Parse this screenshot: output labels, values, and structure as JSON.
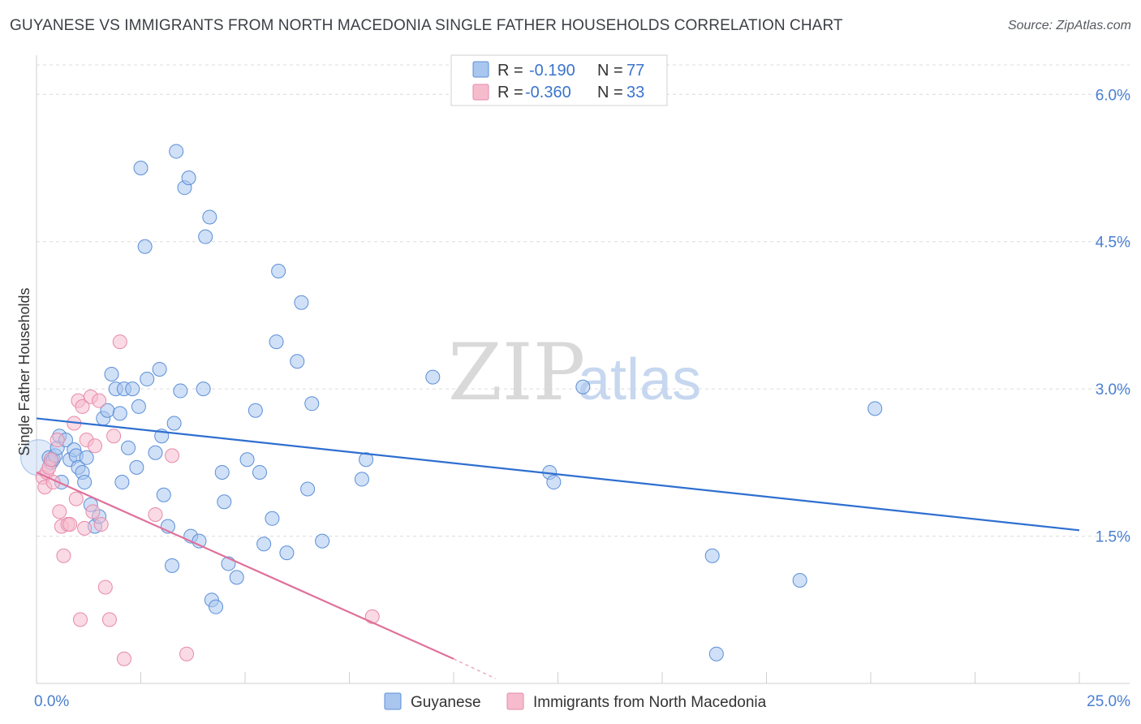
{
  "title": "GUYANESE VS IMMIGRANTS FROM NORTH MACEDONIA SINGLE FATHER HOUSEHOLDS CORRELATION CHART",
  "source": "Source: ZipAtlas.com",
  "watermark": {
    "part1": "ZIP",
    "part2": "atlas"
  },
  "legend": {
    "rows": [
      {
        "r_label": "R =",
        "r_value": "-0.190",
        "n_label": "N =",
        "n_value": "77"
      },
      {
        "r_label": "R =",
        "r_value": "-0.360",
        "n_label": "N =",
        "n_value": "33"
      }
    ]
  },
  "colors": {
    "guyanese_fill": "#a9c6ef",
    "guyanese_stroke": "#5b8fd8",
    "guyanese_line": "#2f6fd0",
    "macedonia_fill": "#f6bccd",
    "macedonia_stroke": "#e68aa9",
    "macedonia_line": "#e0709a",
    "tick_color": "#4a7fd0",
    "grid": "#dcdcdc"
  },
  "chart_data": {
    "type": "scatter",
    "title": "GUYANESE VS IMMIGRANTS FROM NORTH MACEDONIA SINGLE FATHER HOUSEHOLDS CORRELATION CHART",
    "xlabel": "",
    "ylabel": "Single Father Households",
    "xlim": [
      0,
      25
    ],
    "ylim": [
      0,
      6.3
    ],
    "x_tick_labels": [
      "0.0%",
      "25.0%"
    ],
    "y_ticks": [
      1.5,
      3.0,
      4.5,
      6.0
    ],
    "y_tick_labels": [
      "1.5%",
      "3.0%",
      "4.5%",
      "6.0%"
    ],
    "grid": "horizontal dashed",
    "legend_position": "top-center",
    "series": [
      {
        "name": "Guyanese",
        "r": -0.19,
        "n": 77,
        "trend": {
          "x": [
            0,
            25
          ],
          "y": [
            2.7,
            1.56
          ]
        },
        "points": [
          [
            0.3,
            2.3
          ],
          [
            0.35,
            2.25
          ],
          [
            0.4,
            2.28
          ],
          [
            0.45,
            2.32
          ],
          [
            0.5,
            2.4
          ],
          [
            0.55,
            2.52
          ],
          [
            0.6,
            2.05
          ],
          [
            0.7,
            2.48
          ],
          [
            0.8,
            2.28
          ],
          [
            0.9,
            2.38
          ],
          [
            0.95,
            2.32
          ],
          [
            1.0,
            2.2
          ],
          [
            1.1,
            2.15
          ],
          [
            1.15,
            2.05
          ],
          [
            1.2,
            2.3
          ],
          [
            1.3,
            1.82
          ],
          [
            1.4,
            1.6
          ],
          [
            1.5,
            1.7
          ],
          [
            1.6,
            2.7
          ],
          [
            1.7,
            2.78
          ],
          [
            1.8,
            3.15
          ],
          [
            1.9,
            3.0
          ],
          [
            2.0,
            2.75
          ],
          [
            2.05,
            2.05
          ],
          [
            2.1,
            3.0
          ],
          [
            2.2,
            2.4
          ],
          [
            2.3,
            3.0
          ],
          [
            2.4,
            2.2
          ],
          [
            2.45,
            2.82
          ],
          [
            2.5,
            5.25
          ],
          [
            2.6,
            4.45
          ],
          [
            2.65,
            3.1
          ],
          [
            2.85,
            2.35
          ],
          [
            2.95,
            3.2
          ],
          [
            3.0,
            2.52
          ],
          [
            3.05,
            1.92
          ],
          [
            3.15,
            1.6
          ],
          [
            3.25,
            1.2
          ],
          [
            3.3,
            2.65
          ],
          [
            3.35,
            5.42
          ],
          [
            3.45,
            2.98
          ],
          [
            3.55,
            5.05
          ],
          [
            3.65,
            5.15
          ],
          [
            3.7,
            1.5
          ],
          [
            3.9,
            1.45
          ],
          [
            4.0,
            3.0
          ],
          [
            4.05,
            4.55
          ],
          [
            4.15,
            4.75
          ],
          [
            4.2,
            0.85
          ],
          [
            4.3,
            0.78
          ],
          [
            4.45,
            2.15
          ],
          [
            4.5,
            1.85
          ],
          [
            4.6,
            1.22
          ],
          [
            4.8,
            1.08
          ],
          [
            5.05,
            2.28
          ],
          [
            5.25,
            2.78
          ],
          [
            5.35,
            2.15
          ],
          [
            5.45,
            1.42
          ],
          [
            5.65,
            1.68
          ],
          [
            5.75,
            3.48
          ],
          [
            5.8,
            4.2
          ],
          [
            6.0,
            1.33
          ],
          [
            6.25,
            3.28
          ],
          [
            6.35,
            3.88
          ],
          [
            6.5,
            1.98
          ],
          [
            6.6,
            2.85
          ],
          [
            6.85,
            1.45
          ],
          [
            7.8,
            2.08
          ],
          [
            7.9,
            2.28
          ],
          [
            9.5,
            3.12
          ],
          [
            12.3,
            2.15
          ],
          [
            12.4,
            2.05
          ],
          [
            13.1,
            3.02
          ],
          [
            16.2,
            1.3
          ],
          [
            16.3,
            0.3
          ],
          [
            18.3,
            1.05
          ],
          [
            20.1,
            2.8
          ]
        ]
      },
      {
        "name": "Immigrants from North Macedonia",
        "r": -0.36,
        "n": 33,
        "trend": {
          "x": [
            0,
            10
          ],
          "y": [
            2.15,
            0.25
          ]
        },
        "trend_dashed": {
          "x": [
            10,
            11.0
          ],
          "y": [
            0.25,
            0.05
          ]
        },
        "points": [
          [
            0.15,
            2.1
          ],
          [
            0.2,
            2.0
          ],
          [
            0.25,
            2.15
          ],
          [
            0.3,
            2.2
          ],
          [
            0.35,
            2.28
          ],
          [
            0.4,
            2.05
          ],
          [
            0.5,
            2.48
          ],
          [
            0.55,
            1.75
          ],
          [
            0.6,
            1.6
          ],
          [
            0.65,
            1.3
          ],
          [
            0.75,
            1.62
          ],
          [
            0.8,
            1.62
          ],
          [
            0.9,
            2.65
          ],
          [
            0.95,
            1.88
          ],
          [
            1.0,
            2.88
          ],
          [
            1.05,
            0.65
          ],
          [
            1.1,
            2.82
          ],
          [
            1.15,
            1.58
          ],
          [
            1.2,
            2.48
          ],
          [
            1.3,
            2.92
          ],
          [
            1.35,
            1.75
          ],
          [
            1.4,
            2.42
          ],
          [
            1.5,
            2.88
          ],
          [
            1.55,
            1.62
          ],
          [
            1.65,
            0.98
          ],
          [
            1.75,
            0.65
          ],
          [
            1.85,
            2.52
          ],
          [
            2.0,
            3.48
          ],
          [
            2.1,
            0.25
          ],
          [
            2.85,
            1.72
          ],
          [
            3.25,
            2.32
          ],
          [
            3.6,
            0.3
          ],
          [
            8.05,
            0.68
          ]
        ]
      }
    ]
  },
  "bottom_legend": {
    "items": [
      "Guyanese",
      "Immigrants from North Macedonia"
    ]
  }
}
